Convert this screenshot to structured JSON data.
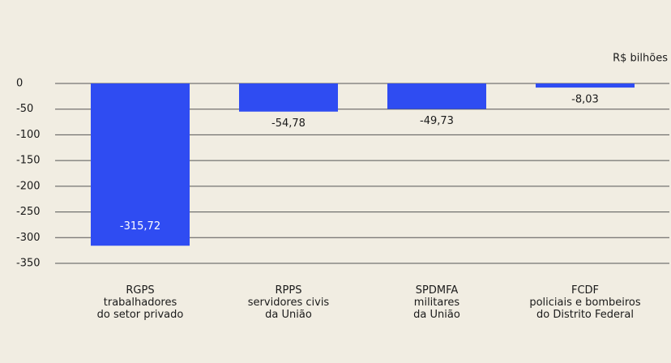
{
  "chart_data": {
    "type": "bar",
    "unit_label": "R$ bilhões",
    "categories": [
      "RGPS\ntrabalhadores\ndo setor privado",
      "RPPS\nservidores civis\nda União",
      "SPDMFA\nmilitares\nda União",
      "FCDF\npoliciais e bombeiros\ndo Distrito Federal"
    ],
    "values": [
      -315.72,
      -54.78,
      -49.73,
      -8.03
    ],
    "value_labels": [
      "-315,72",
      "-54,78",
      "-49,73",
      "-8,03"
    ],
    "color": "#2f4cf2",
    "ylim": [
      -350,
      0
    ],
    "yticks": [
      0,
      -50,
      -100,
      -150,
      -200,
      -250,
      -300,
      -350
    ],
    "grid": true
  }
}
